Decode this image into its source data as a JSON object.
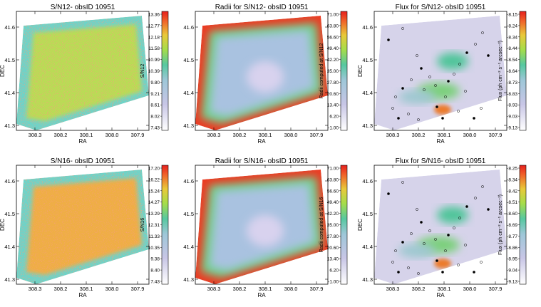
{
  "figure": {
    "chart_data": [
      {
        "type": "heatmap",
        "title": "S/N12- obsID 10951",
        "xlabel": "RA",
        "ylabel": "DEC",
        "x_ticks": [
          "308.3",
          "308.2",
          "308.1",
          "308.0",
          "307.9"
        ],
        "y_ticks": [
          "41.6",
          "41.5",
          "41.4",
          "41.3"
        ],
        "colorbar_label": "S/N12",
        "colorbar_ticks": [
          "13.36",
          "12.77",
          "12.18",
          "11.58",
          "10.99",
          "10.39",
          "9.80",
          "9.21",
          "8.61",
          "8.02",
          "7.43"
        ],
        "colorscale": "bkr",
        "dominant_value": 11.6,
        "border_values": "low"
      },
      {
        "type": "heatmap",
        "title": "Radii for S/N12- obsID 10951",
        "xlabel": "RA",
        "ylabel": "",
        "x_ticks": [
          "308.3",
          "308.2",
          "308.1",
          "308.0",
          "307.9"
        ],
        "y_ticks": [
          "41.6",
          "41.5",
          "41.4",
          "41.3"
        ],
        "colorbar_label": "Radii computed at S/N12",
        "colorbar_ticks": [
          "71.00",
          "63.80",
          "56.60",
          "49.40",
          "42.20",
          "35.00",
          "27.80",
          "20.60",
          "13.40",
          "6.20",
          "-1.00"
        ],
        "colorscale": "bkr",
        "dominant_value": 20,
        "border_values": "high"
      },
      {
        "type": "heatmap",
        "title": "Flux for S/N12- obsID 10951",
        "xlabel": "RA",
        "ylabel": "DEC",
        "x_ticks": [
          "308.3",
          "308.2",
          "308.1",
          "308.0",
          "307.9"
        ],
        "y_ticks": [
          "41.6",
          "41.5",
          "41.4",
          "41.3"
        ],
        "colorbar_label": "Flux (ph cm⁻² s⁻¹ arcsec⁻²)",
        "colorbar_ticks": [
          "-8.15",
          "-8.24",
          "-8.34",
          "-8.44",
          "-8.54",
          "-8.64",
          "-8.73",
          "-8.83",
          "-8.93",
          "-9.03",
          "-9.13"
        ],
        "colorscale": "bkr",
        "dominant_value": -8.95,
        "bright_spots": "central"
      },
      {
        "type": "heatmap",
        "title": "S/N16- obsID 10951",
        "xlabel": "RA",
        "ylabel": "DEC",
        "x_ticks": [
          "308.3",
          "308.2",
          "308.1",
          "308.0",
          "307.9"
        ],
        "y_ticks": [
          "41.6",
          "41.5",
          "41.4",
          "41.3"
        ],
        "colorbar_label": "S/N16",
        "colorbar_ticks": [
          "17.20",
          "16.22",
          "15.24",
          "14.27",
          "13.29",
          "12.31",
          "11.33",
          "10.35",
          "9.38",
          "8.40",
          "7.43"
        ],
        "colorscale": "bkr",
        "dominant_value": 15.3,
        "border_values": "low"
      },
      {
        "type": "heatmap",
        "title": "Radii for S/N16- obsID 10951",
        "xlabel": "RA",
        "ylabel": "",
        "x_ticks": [
          "308.3",
          "308.2",
          "308.1",
          "308.0",
          "307.9"
        ],
        "y_ticks": [
          "41.6",
          "41.5",
          "41.4",
          "41.3"
        ],
        "colorbar_label": "Radii computed at S/N16",
        "colorbar_ticks": [
          "71.00",
          "63.80",
          "56.60",
          "49.40",
          "42.20",
          "35.00",
          "27.80",
          "20.60",
          "13.40",
          "6.20",
          "-1.00"
        ],
        "colorscale": "bkr",
        "dominant_value": 22,
        "border_values": "high"
      },
      {
        "type": "heatmap",
        "title": "Flux for S/N16- obsID 10951",
        "xlabel": "RA",
        "ylabel": "DEC",
        "x_ticks": [
          "308.3",
          "308.2",
          "308.1",
          "308.0",
          "307.9"
        ],
        "y_ticks": [
          "41.6",
          "41.5",
          "41.4",
          "41.3"
        ],
        "colorbar_label": "Flux (ph cm⁻² s⁻¹ arcsec⁻²)",
        "colorbar_ticks": [
          "-8.25",
          "-8.34",
          "-8.42",
          "-8.51",
          "-8.60",
          "-8.69",
          "-8.77",
          "-8.86",
          "-8.95",
          "-9.04",
          "-9.13"
        ],
        "colorscale": "bkr",
        "dominant_value": -9.02,
        "bright_spots": "central"
      }
    ],
    "colors": {
      "background": "#ffffff",
      "outside_map": "#ffffff",
      "axis": "#000000",
      "star_marker": "#000000"
    }
  }
}
